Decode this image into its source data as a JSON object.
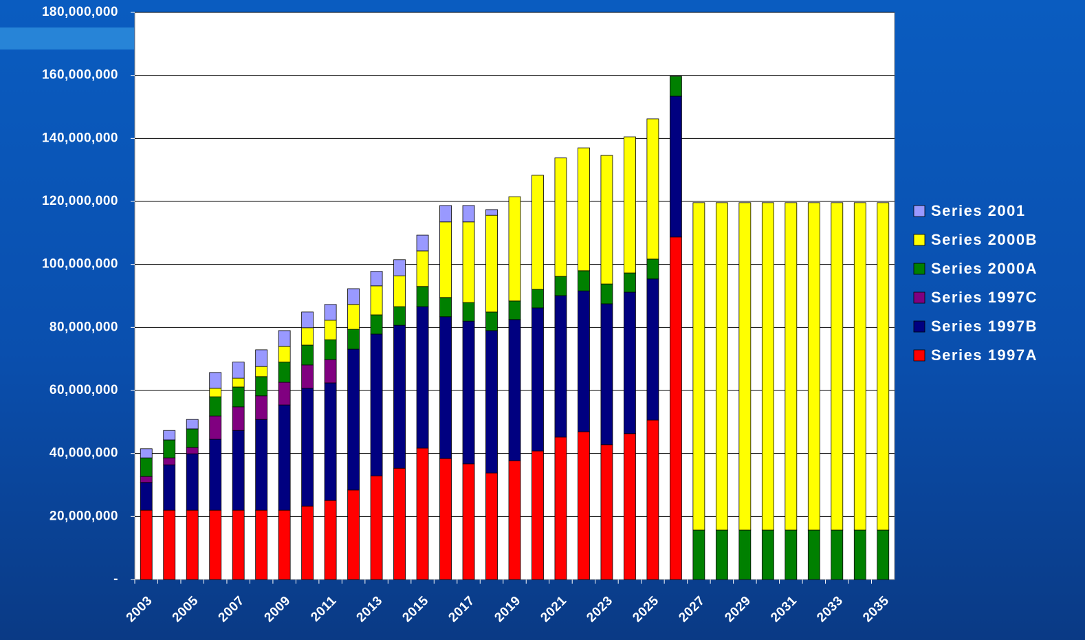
{
  "chart_data": {
    "type": "stacked-bar",
    "categories": [
      "2003",
      null,
      "2005",
      null,
      "2007",
      null,
      "2009",
      null,
      "2011",
      null,
      "2013",
      null,
      "2015",
      null,
      "2017",
      null,
      "2019",
      null,
      "2021",
      null,
      "2023",
      null,
      "2025",
      null,
      "2027",
      null,
      "2029",
      null,
      "2031",
      null,
      "2033",
      null,
      "2035"
    ],
    "series": [
      {
        "name": "Series 1997A",
        "color": "#ff0000",
        "values": [
          22000000,
          22000000,
          22000000,
          22000000,
          22000000,
          22000000,
          22000000,
          23300000,
          25100000,
          28400000,
          32900000,
          35300000,
          41700000,
          38400000,
          36700000,
          33800000,
          37700000,
          40800000,
          45200000,
          46900000,
          42800000,
          46300000,
          50600000,
          108700000,
          null,
          null,
          null,
          null,
          null,
          null,
          null,
          null,
          null
        ]
      },
      {
        "name": "Series 1997B",
        "color": "#000080",
        "values": [
          8800000,
          14400000,
          17900000,
          22500000,
          25300000,
          28800000,
          33400000,
          37400000,
          37300000,
          44700000,
          45000000,
          45400000,
          44900000,
          45000000,
          45300000,
          45200000,
          44800000,
          45400000,
          44900000,
          44700000,
          44700000,
          44900000,
          44800000,
          44700000,
          null,
          null,
          null,
          null,
          null,
          null,
          null,
          null,
          null
        ]
      },
      {
        "name": "Series 1997C",
        "color": "#800080",
        "values": [
          1900000,
          2200000,
          2000000,
          7400000,
          7500000,
          7500000,
          7200000,
          7400000,
          7400000,
          null,
          null,
          null,
          null,
          null,
          null,
          null,
          null,
          null,
          null,
          null,
          null,
          null,
          null,
          null,
          null,
          null,
          null,
          null,
          null,
          null,
          null,
          null,
          null
        ]
      },
      {
        "name": "Series 2000A",
        "color": "#008000",
        "values": [
          5900000,
          5700000,
          5900000,
          6100000,
          6300000,
          6100000,
          6400000,
          6300000,
          6300000,
          6300000,
          6100000,
          5900000,
          6400000,
          6100000,
          5900000,
          5900000,
          5900000,
          5900000,
          6100000,
          6400000,
          6300000,
          6100000,
          6300000,
          6300000,
          15700000,
          15700000,
          15700000,
          15700000,
          15700000,
          15700000,
          15700000,
          15700000,
          15700000
        ]
      },
      {
        "name": "Series 2000B",
        "color": "#ffff00",
        "values": [
          null,
          null,
          null,
          2700000,
          2800000,
          3200000,
          5000000,
          5500000,
          6200000,
          7900000,
          9200000,
          9800000,
          11300000,
          24000000,
          25600000,
          30700000,
          33100000,
          36200000,
          37600000,
          39000000,
          40800000,
          43200000,
          44500000,
          null,
          103900000,
          103900000,
          103900000,
          103900000,
          103900000,
          103900000,
          103900000,
          103900000,
          103900000
        ]
      },
      {
        "name": "Series 2001",
        "color": "#9999ff",
        "values": [
          2900000,
          3000000,
          3000000,
          5000000,
          5100000,
          5300000,
          5000000,
          5000000,
          5000000,
          5000000,
          4600000,
          5100000,
          5000000,
          5200000,
          5200000,
          1800000,
          null,
          null,
          null,
          null,
          null,
          null,
          null,
          null,
          null,
          null,
          null,
          null,
          null,
          null,
          null,
          null,
          null
        ]
      }
    ],
    "ylim": [
      0,
      180000000
    ],
    "yticks": [
      {
        "value": 0,
        "label": "-"
      },
      {
        "value": 20000000,
        "label": "20,000,000"
      },
      {
        "value": 40000000,
        "label": "40,000,000"
      },
      {
        "value": 60000000,
        "label": "60,000,000"
      },
      {
        "value": 80000000,
        "label": "80,000,000"
      },
      {
        "value": 100000000,
        "label": "100,000,000"
      },
      {
        "value": 120000000,
        "label": "120,000,000"
      },
      {
        "value": 140000000,
        "label": "140,000,000"
      },
      {
        "value": 160000000,
        "label": "160,000,000"
      },
      {
        "value": 180000000,
        "label": "180,000,000"
      }
    ],
    "grid": true,
    "legend": "right"
  }
}
